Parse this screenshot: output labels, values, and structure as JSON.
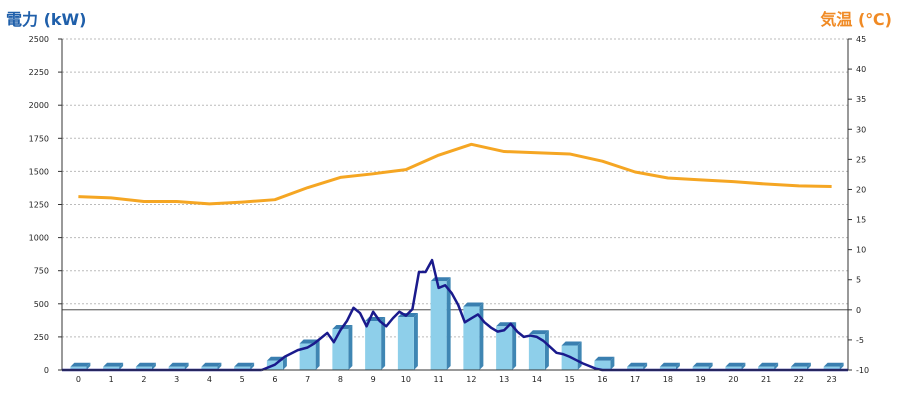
{
  "chart_data": {
    "type": "bar",
    "ylabel_left": "電力 (kW)",
    "ylabel_right": "気温 (℃)",
    "x": [
      "0",
      "1",
      "2",
      "3",
      "4",
      "5",
      "6",
      "7",
      "8",
      "9",
      "10",
      "11",
      "12",
      "13",
      "14",
      "15",
      "16",
      "17",
      "18",
      "19",
      "20",
      "21",
      "22",
      "23"
    ],
    "ylim_left": [
      0,
      2500
    ],
    "ylim_right": [
      -10,
      45
    ],
    "yticks_left": [
      0,
      250,
      500,
      750,
      1000,
      1250,
      1500,
      1750,
      2000,
      2250,
      2500
    ],
    "yticks_right": [
      -10,
      -5,
      0,
      5,
      10,
      15,
      20,
      25,
      30,
      35,
      40,
      45
    ],
    "grid": true,
    "series": [
      {
        "kind": "bar",
        "axis": "left",
        "values": [
          25,
          25,
          25,
          25,
          25,
          25,
          70,
          200,
          310,
          370,
          400,
          670,
          480,
          330,
          270,
          185,
          70,
          25,
          25,
          25,
          25,
          25,
          25,
          25
        ]
      },
      {
        "kind": "line",
        "axis": "left",
        "x": [
          5.6,
          6.0,
          6.3,
          6.7,
          7.0,
          7.2,
          7.4,
          7.6,
          7.8,
          8.0,
          8.2,
          8.4,
          8.6,
          8.8,
          9.0,
          9.2,
          9.4,
          9.6,
          9.8,
          10.0,
          10.2,
          10.4,
          10.6,
          10.8,
          11.0,
          11.2,
          11.4,
          11.6,
          11.8,
          12.0,
          12.2,
          12.4,
          12.6,
          12.8,
          13.0,
          13.2,
          13.4,
          13.6,
          13.8,
          14.0,
          14.2,
          14.4,
          14.6,
          14.8,
          15.0,
          15.2,
          15.4,
          15.6,
          15.8,
          16.0,
          16.3,
          16.6,
          17.0
        ],
        "values": [
          0,
          40,
          100,
          150,
          170,
          200,
          240,
          280,
          210,
          300,
          370,
          470,
          430,
          330,
          440,
          370,
          330,
          390,
          440,
          410,
          460,
          740,
          740,
          830,
          620,
          640,
          580,
          490,
          360,
          390,
          420,
          360,
          320,
          290,
          300,
          350,
          290,
          250,
          260,
          250,
          220,
          175,
          130,
          120,
          100,
          75,
          50,
          30,
          10,
          0,
          0,
          0,
          0
        ]
      },
      {
        "kind": "line",
        "axis": "right",
        "values": [
          18.8,
          18.6,
          18.0,
          18.0,
          17.6,
          17.9,
          18.3,
          20.3,
          22.0,
          22.6,
          23.3,
          25.7,
          27.5,
          26.3,
          26.1,
          25.9,
          24.7,
          22.9,
          21.9,
          21.6,
          21.3,
          20.9,
          20.6,
          20.5
        ]
      }
    ]
  }
}
